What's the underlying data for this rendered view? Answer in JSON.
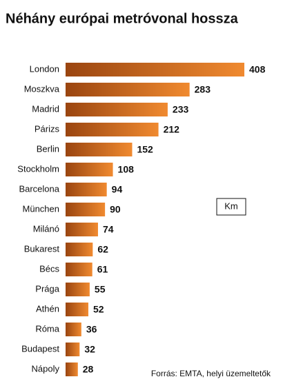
{
  "chart_data": {
    "type": "bar",
    "orientation": "horizontal",
    "title": "Néhány európai metróvonal hossza",
    "categories": [
      "London",
      "Moszkva",
      "Madrid",
      "Párizs",
      "Berlin",
      "Stockholm",
      "Barcelona",
      "München",
      "Milánó",
      "Bukarest",
      "Bécs",
      "Prága",
      "Athén",
      "Róma",
      "Budapest",
      "Nápoly"
    ],
    "values": [
      408,
      283,
      233,
      212,
      152,
      108,
      94,
      90,
      74,
      62,
      61,
      55,
      52,
      36,
      32,
      28
    ],
    "color": "#f08a30",
    "unit": "Km",
    "source": "Forrás: EMTA, helyi üzemeltetők"
  }
}
